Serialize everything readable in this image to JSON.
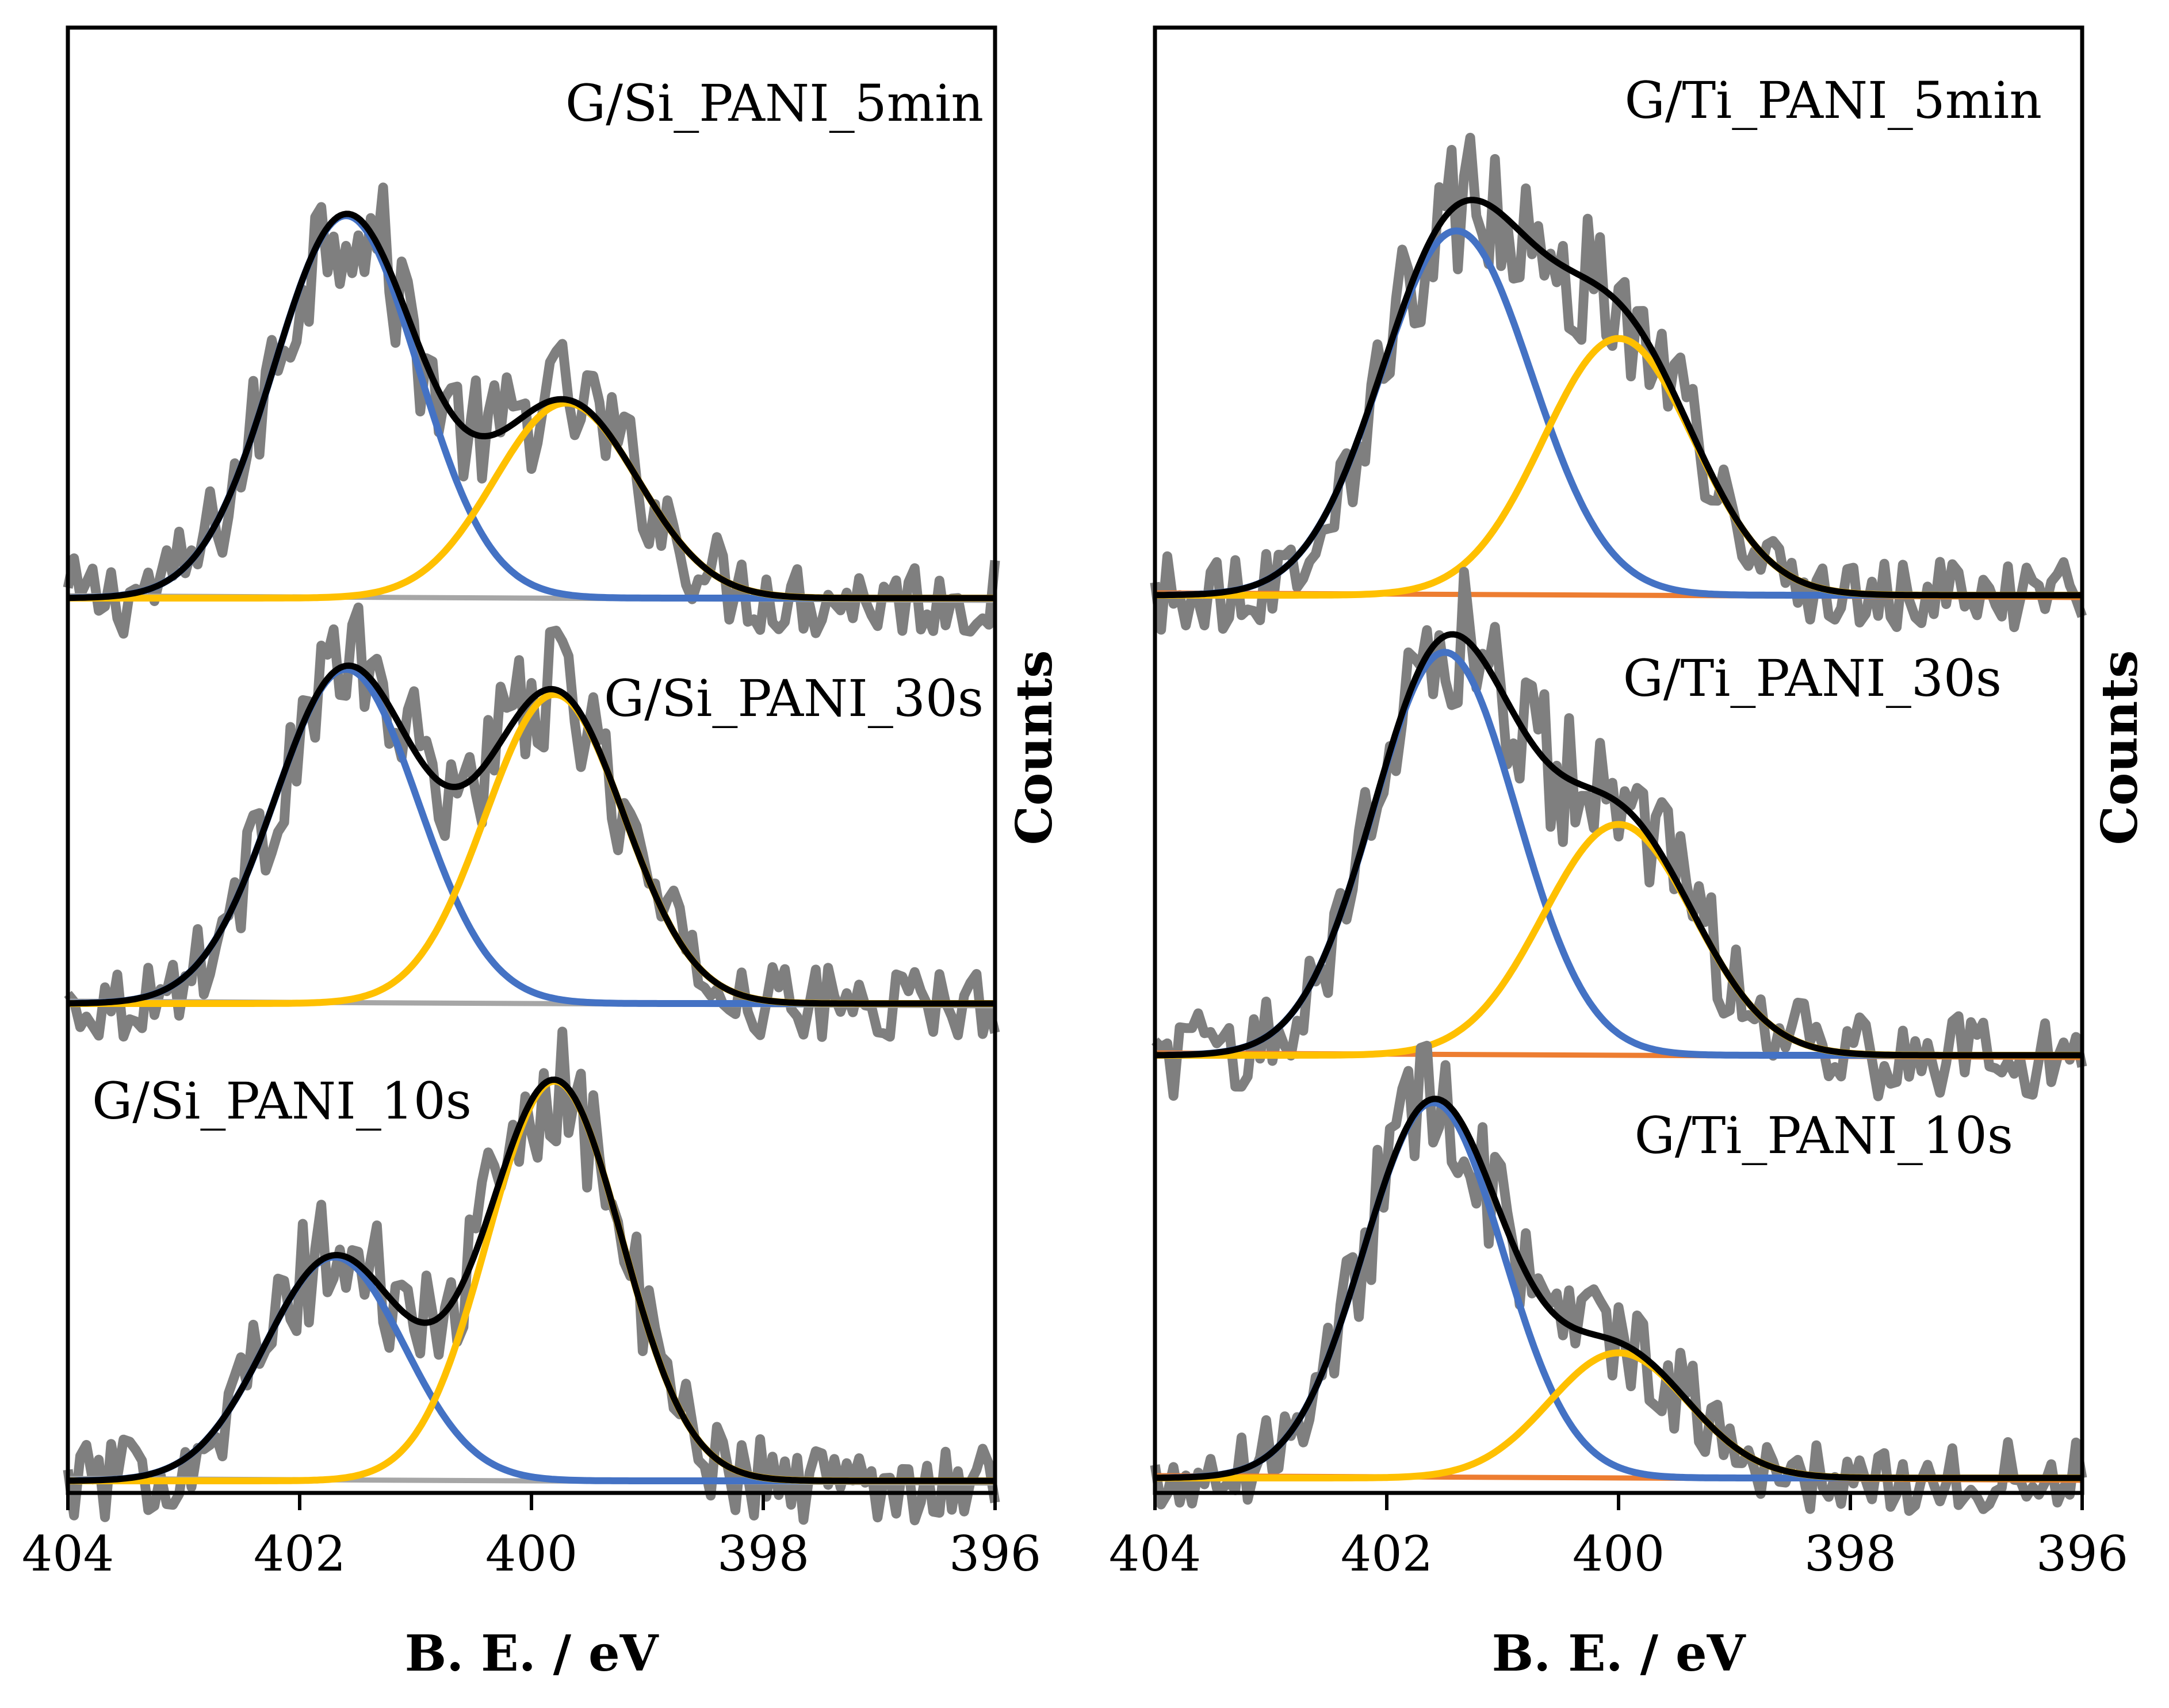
{
  "chart_data": [
    {
      "type": "line",
      "panel": "left",
      "xlabel": "B. E. / eV",
      "ylabel": "Counts",
      "xlim": [
        404,
        396
      ],
      "xticks": [
        404,
        402,
        400,
        398,
        396
      ],
      "x_reversed": true,
      "y_ticks_shown": false,
      "legend": "none",
      "colors": {
        "raw": "#7f7f7f",
        "peak_high_be": "#4472c4",
        "peak_low_be": "#ffc000",
        "envelope": "#000000",
        "background": "#a6a6a6"
      },
      "subplots": [
        {
          "label": "G/Si_PANI_5min",
          "baseline": 0.0,
          "peaks": [
            {
              "name": "blue component",
              "center": 401.6,
              "height": 1.0,
              "sigma": 0.62
            },
            {
              "name": "yellow component",
              "center": 399.7,
              "height": 0.51,
              "sigma": 0.62
            }
          ],
          "envelope_max": 1.01,
          "raw_noise": 0.16
        },
        {
          "label": "G/Si_PANI_30s",
          "baseline": 0.0,
          "peaks": [
            {
              "name": "blue component",
              "center": 401.6,
              "height": 0.93,
              "sigma": 0.62
            },
            {
              "name": "yellow component",
              "center": 399.8,
              "height": 0.86,
              "sigma": 0.6
            }
          ],
          "envelope_max": 0.96,
          "raw_noise": 0.15
        },
        {
          "label": "G/Si_PANI_10s",
          "baseline": 0.0,
          "peaks": [
            {
              "name": "blue component",
              "center": 401.7,
              "height": 0.56,
              "sigma": 0.6
            },
            {
              "name": "yellow component",
              "center": 399.8,
              "height": 1.0,
              "sigma": 0.58
            }
          ],
          "envelope_max": 1.02,
          "raw_noise": 0.15
        }
      ]
    },
    {
      "type": "line",
      "panel": "right",
      "xlabel": "B. E. / eV",
      "ylabel": "Counts",
      "xlim": [
        404,
        396
      ],
      "xticks": [
        404,
        402,
        400,
        398,
        396
      ],
      "x_reversed": true,
      "y_ticks_shown": false,
      "legend": "none",
      "colors": {
        "raw": "#7f7f7f",
        "peak_high_be": "#4472c4",
        "peak_low_be": "#ffc000",
        "envelope": "#000000",
        "background": "#ed7d31"
      },
      "subplots": [
        {
          "label": "G/Ti_PANI_5min",
          "baseline": 0.0,
          "peaks": [
            {
              "name": "blue component",
              "center": 401.4,
              "height": 0.88,
              "sigma": 0.65
            },
            {
              "name": "yellow component",
              "center": 400.0,
              "height": 0.62,
              "sigma": 0.65
            }
          ],
          "envelope_max": 1.01,
          "raw_noise": 0.14
        },
        {
          "label": "G/Ti_PANI_30s",
          "baseline": 0.0,
          "peaks": [
            {
              "name": "blue component",
              "center": 401.5,
              "height": 0.96,
              "sigma": 0.62
            },
            {
              "name": "yellow component",
              "center": 400.0,
              "height": 0.55,
              "sigma": 0.65
            }
          ],
          "envelope_max": 1.03,
          "raw_noise": 0.15
        },
        {
          "label": "G/Ti_PANI_10s",
          "baseline": 0.0,
          "peaks": [
            {
              "name": "blue component",
              "center": 401.6,
              "height": 0.96,
              "sigma": 0.6
            },
            {
              "name": "yellow component",
              "center": 400.0,
              "height": 0.32,
              "sigma": 0.6
            }
          ],
          "envelope_max": 1.0,
          "raw_noise": 0.14
        }
      ]
    }
  ]
}
